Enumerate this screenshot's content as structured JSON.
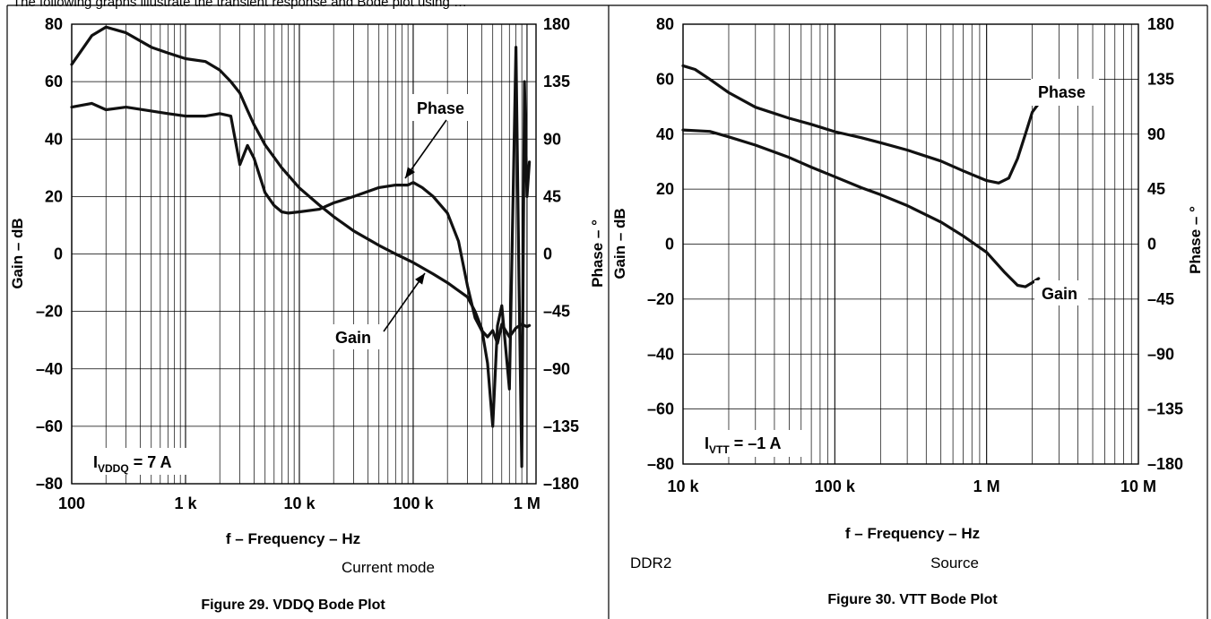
{
  "header_text": "The following graphs illustrate the transient response and Bode plot using …",
  "chart_data": [
    {
      "type": "line",
      "caption": "Figure 29. VDDQ Bode Plot",
      "mode_note": "Current mode",
      "xlabel": "f – Frequency – Hz",
      "ylabel_left": "Gain – dB",
      "ylabel_right": "Phase – °",
      "x_scale": "log",
      "xlim": [
        100,
        1200000
      ],
      "ylim_left": [
        -80,
        80
      ],
      "ylim_right": [
        -180,
        180
      ],
      "grid": true,
      "x_ticks": [
        {
          "value": 100,
          "label": "100"
        },
        {
          "value": 1000,
          "label": "1 k"
        },
        {
          "value": 10000,
          "label": "10 k"
        },
        {
          "value": 100000,
          "label": "100 k"
        },
        {
          "value": 1000000,
          "label": "1 M"
        }
      ],
      "y_ticks_left": [
        {
          "value": 80,
          "label": "80"
        },
        {
          "value": 60,
          "label": "60"
        },
        {
          "value": 40,
          "label": "40"
        },
        {
          "value": 20,
          "label": "20"
        },
        {
          "value": 0,
          "label": "0"
        },
        {
          "value": -20,
          "label": "–20"
        },
        {
          "value": -40,
          "label": "–40"
        },
        {
          "value": -60,
          "label": "–60"
        },
        {
          "value": -80,
          "label": "–80"
        }
      ],
      "y_ticks_right": [
        {
          "value": 180,
          "label": "180"
        },
        {
          "value": 135,
          "label": "135"
        },
        {
          "value": 90,
          "label": "90"
        },
        {
          "value": 45,
          "label": "45"
        },
        {
          "value": 0,
          "label": "0"
        },
        {
          "value": -45,
          "label": "–45"
        },
        {
          "value": -90,
          "label": "–90"
        },
        {
          "value": -135,
          "label": "–135"
        },
        {
          "value": -180,
          "label": "–180"
        }
      ],
      "annotation": {
        "main": "I",
        "sub": "VDDQ",
        "tail": " = 7 A"
      },
      "series": [
        {
          "name": "Gain",
          "axis": "left",
          "x": [
            100,
            150,
            200,
            300,
            500,
            700,
            1000,
            1500,
            2000,
            2500,
            3000,
            3500,
            4000,
            5000,
            7000,
            10000,
            15000,
            20000,
            30000,
            50000,
            70000,
            100000,
            150000,
            200000,
            300000,
            350000,
            400000,
            450000,
            500000,
            550000,
            600000,
            700000,
            800000,
            850000,
            900000,
            950000,
            1000000,
            1050000
          ],
          "values": [
            66,
            76,
            79,
            77,
            72,
            70,
            68,
            67,
            64,
            60,
            56,
            50,
            45,
            38,
            30,
            23,
            17,
            13,
            8,
            3,
            0,
            -3,
            -7,
            -10,
            -15,
            -20,
            -26,
            -38,
            -60,
            -25,
            -18,
            -47,
            72,
            -10,
            -74,
            60,
            20,
            32
          ]
        },
        {
          "name": "Phase",
          "axis": "right",
          "x": [
            100,
            150,
            200,
            300,
            500,
            700,
            1000,
            1500,
            2000,
            2500,
            3000,
            3500,
            4000,
            5000,
            6000,
            7000,
            8000,
            10000,
            15000,
            20000,
            30000,
            50000,
            70000,
            90000,
            100000,
            120000,
            150000,
            200000,
            250000,
            300000,
            350000,
            400000,
            450000,
            500000,
            550000,
            600000,
            700000,
            800000,
            900000,
            1000000,
            1050000
          ],
          "values": [
            115,
            118,
            113,
            115,
            112,
            110,
            108,
            108,
            110,
            108,
            70,
            85,
            75,
            48,
            38,
            33,
            32,
            33,
            35,
            40,
            45,
            52,
            54,
            54,
            56,
            52,
            45,
            32,
            10,
            -25,
            -50,
            -60,
            -65,
            -60,
            -70,
            -55,
            -65,
            -58,
            -55,
            -57,
            -56
          ]
        }
      ],
      "labels": [
        {
          "text": "Phase",
          "target_series": "Phase",
          "at_x": 90000,
          "at_y": 54
        },
        {
          "text": "Gain",
          "target_series": "Gain",
          "at_x": 150000,
          "at_y": -7
        }
      ]
    },
    {
      "type": "line",
      "caption": "Figure 30. VTT Bode Plot",
      "mode_note": "Source",
      "prefix_note": "DDR2",
      "xlabel": "f – Frequency – Hz",
      "ylabel_left": "Gain – dB",
      "ylabel_right": "Phase – °",
      "x_scale": "log",
      "xlim": [
        10000,
        10000000
      ],
      "ylim_left": [
        -80,
        80
      ],
      "ylim_right": [
        -180,
        180
      ],
      "grid": true,
      "x_ticks": [
        {
          "value": 10000,
          "label": "10 k"
        },
        {
          "value": 100000,
          "label": "100 k"
        },
        {
          "value": 1000000,
          "label": "1 M"
        },
        {
          "value": 10000000,
          "label": "10 M"
        }
      ],
      "y_ticks_left": [
        {
          "value": 80,
          "label": "80"
        },
        {
          "value": 60,
          "label": "60"
        },
        {
          "value": 40,
          "label": "40"
        },
        {
          "value": 20,
          "label": "20"
        },
        {
          "value": 0,
          "label": "0"
        },
        {
          "value": -20,
          "label": "–20"
        },
        {
          "value": -40,
          "label": "–40"
        },
        {
          "value": -60,
          "label": "–60"
        },
        {
          "value": -80,
          "label": "–80"
        }
      ],
      "y_ticks_right": [
        {
          "value": 180,
          "label": "180"
        },
        {
          "value": 135,
          "label": "135"
        },
        {
          "value": 90,
          "label": "90"
        },
        {
          "value": 45,
          "label": "45"
        },
        {
          "value": 0,
          "label": "0"
        },
        {
          "value": -45,
          "label": "–45"
        },
        {
          "value": -90,
          "label": "–90"
        },
        {
          "value": -135,
          "label": "–135"
        },
        {
          "value": -180,
          "label": "–180"
        }
      ],
      "annotation": {
        "main": "I",
        "sub": "VTT",
        "tail": " = –1 A"
      },
      "series": [
        {
          "name": "Gain",
          "axis": "left",
          "x": [
            10000,
            15000,
            20000,
            30000,
            50000,
            70000,
            100000,
            150000,
            200000,
            300000,
            500000,
            700000,
            1000000,
            1300000,
            1600000,
            1800000,
            2000000,
            2200000
          ],
          "values": [
            41.5,
            41,
            39,
            36,
            31.5,
            28,
            24.5,
            20.5,
            18,
            14,
            8,
            3,
            -3,
            -10,
            -15,
            -15.5,
            -14,
            -12.5
          ]
        },
        {
          "name": "Phase",
          "axis": "right",
          "x": [
            10000,
            12000,
            15000,
            20000,
            30000,
            50000,
            70000,
            100000,
            150000,
            200000,
            300000,
            500000,
            700000,
            1000000,
            1200000,
            1400000,
            1600000,
            1800000,
            2000000,
            2200000
          ],
          "values": [
            146,
            143,
            135,
            124,
            112,
            103,
            98,
            92,
            87,
            83,
            77,
            68,
            60,
            52,
            50,
            54,
            70,
            90,
            108,
            115
          ]
        }
      ],
      "labels": [
        {
          "text": "Phase",
          "target_series": "Phase"
        },
        {
          "text": "Gain",
          "target_series": "Gain"
        }
      ]
    }
  ]
}
